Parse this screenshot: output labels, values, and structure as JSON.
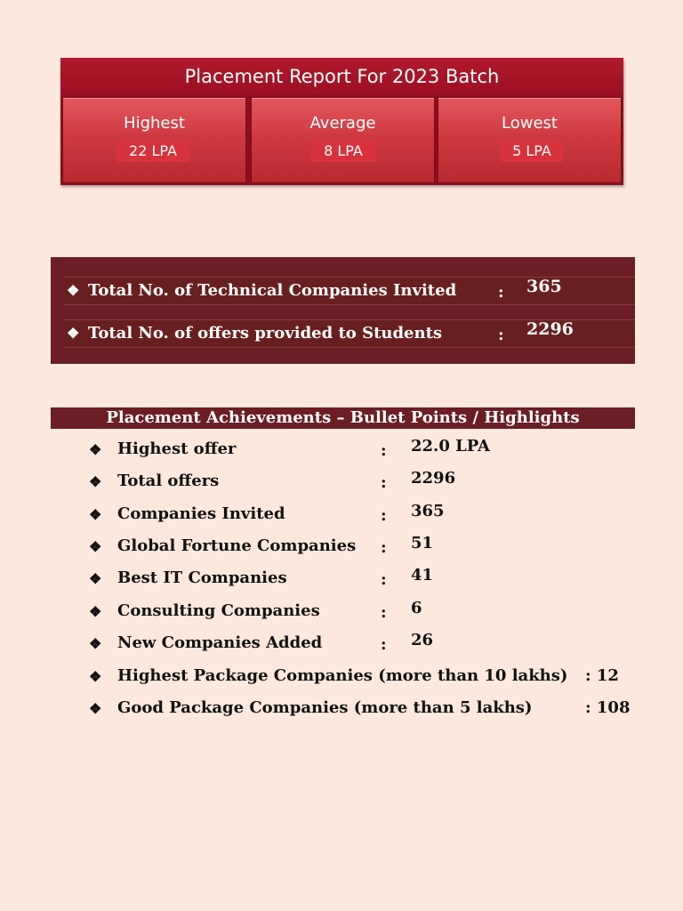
{
  "report": {
    "title": "Placement Report For 2023 Batch",
    "stats": [
      {
        "label": "Highest",
        "value": "22 LPA"
      },
      {
        "label": "Average",
        "value": "8 LPA"
      },
      {
        "label": "Lowest",
        "value": "5 LPA"
      }
    ]
  },
  "totals": [
    {
      "bullet": "❖",
      "text": "Total No. of Technical Companies Invited",
      "colon": ":",
      "value": "365"
    },
    {
      "bullet": "❖",
      "text": "Total No. of offers provided to Students",
      "colon": ":",
      "value": "2296"
    }
  ],
  "achievements": {
    "heading": "Placement Achievements – Bullet Points / Highlights",
    "items": [
      {
        "bullet": "❖",
        "text": "Highest offer",
        "colon": ":",
        "value": "22.0 LPA"
      },
      {
        "bullet": "❖",
        "text": "Total offers",
        "colon": ":",
        "value": "2296"
      },
      {
        "bullet": "❖",
        "text": "Companies Invited",
        "colon": ":",
        "value": "365"
      },
      {
        "bullet": "❖",
        "text": "Global Fortune Companies",
        "colon": ":",
        "value": "51"
      },
      {
        "bullet": "❖",
        "text": "Best IT Companies",
        "colon": ":",
        "value": "41"
      },
      {
        "bullet": "❖",
        "text": "Consulting Companies",
        "colon": ":",
        "value": "6"
      },
      {
        "bullet": "❖",
        "text": "New Companies Added",
        "colon": ":",
        "value": "26"
      }
    ],
    "long_items": [
      {
        "bullet": "❖",
        "text": "Highest Package Companies (more than 10 lakhs)",
        "value": ": 12"
      },
      {
        "bullet": "❖",
        "text": "Good Package Companies (more than 5 lakhs)",
        "value": ": 108"
      }
    ]
  }
}
